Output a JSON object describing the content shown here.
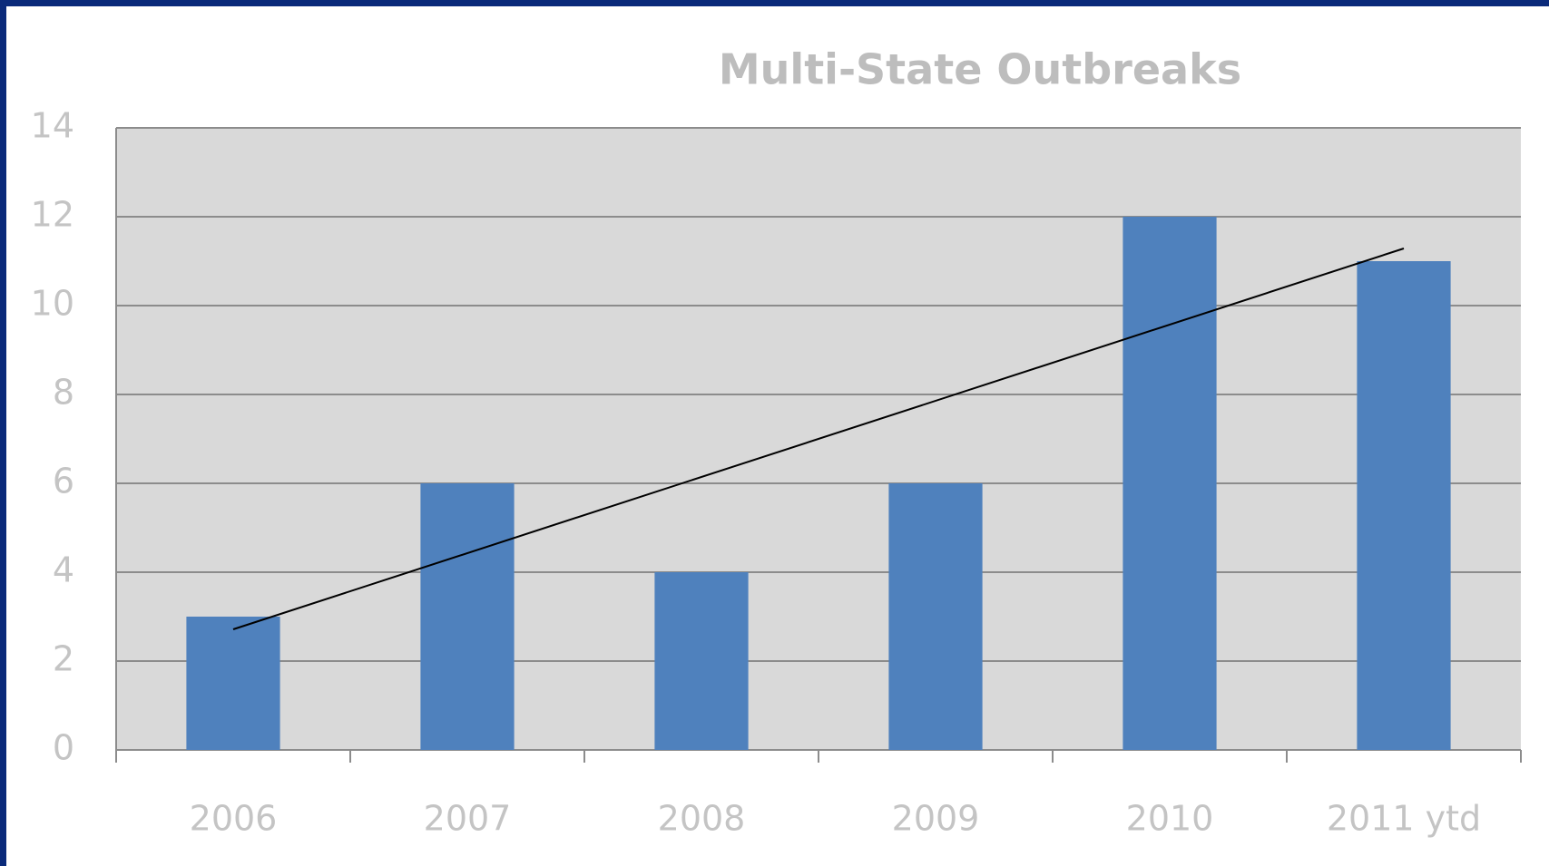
{
  "chart_data": {
    "type": "bar",
    "title": "Multi-State Outbreaks",
    "categories": [
      "2006",
      "2007",
      "2008",
      "2009",
      "2010",
      "2011 ytd"
    ],
    "values": [
      3,
      6,
      4,
      6,
      12,
      11
    ],
    "color": "#4f81bd",
    "ylim": [
      0,
      14
    ],
    "yticks": [
      0,
      2,
      4,
      6,
      8,
      10,
      12,
      14
    ],
    "grid": true,
    "trendline": "linear"
  }
}
